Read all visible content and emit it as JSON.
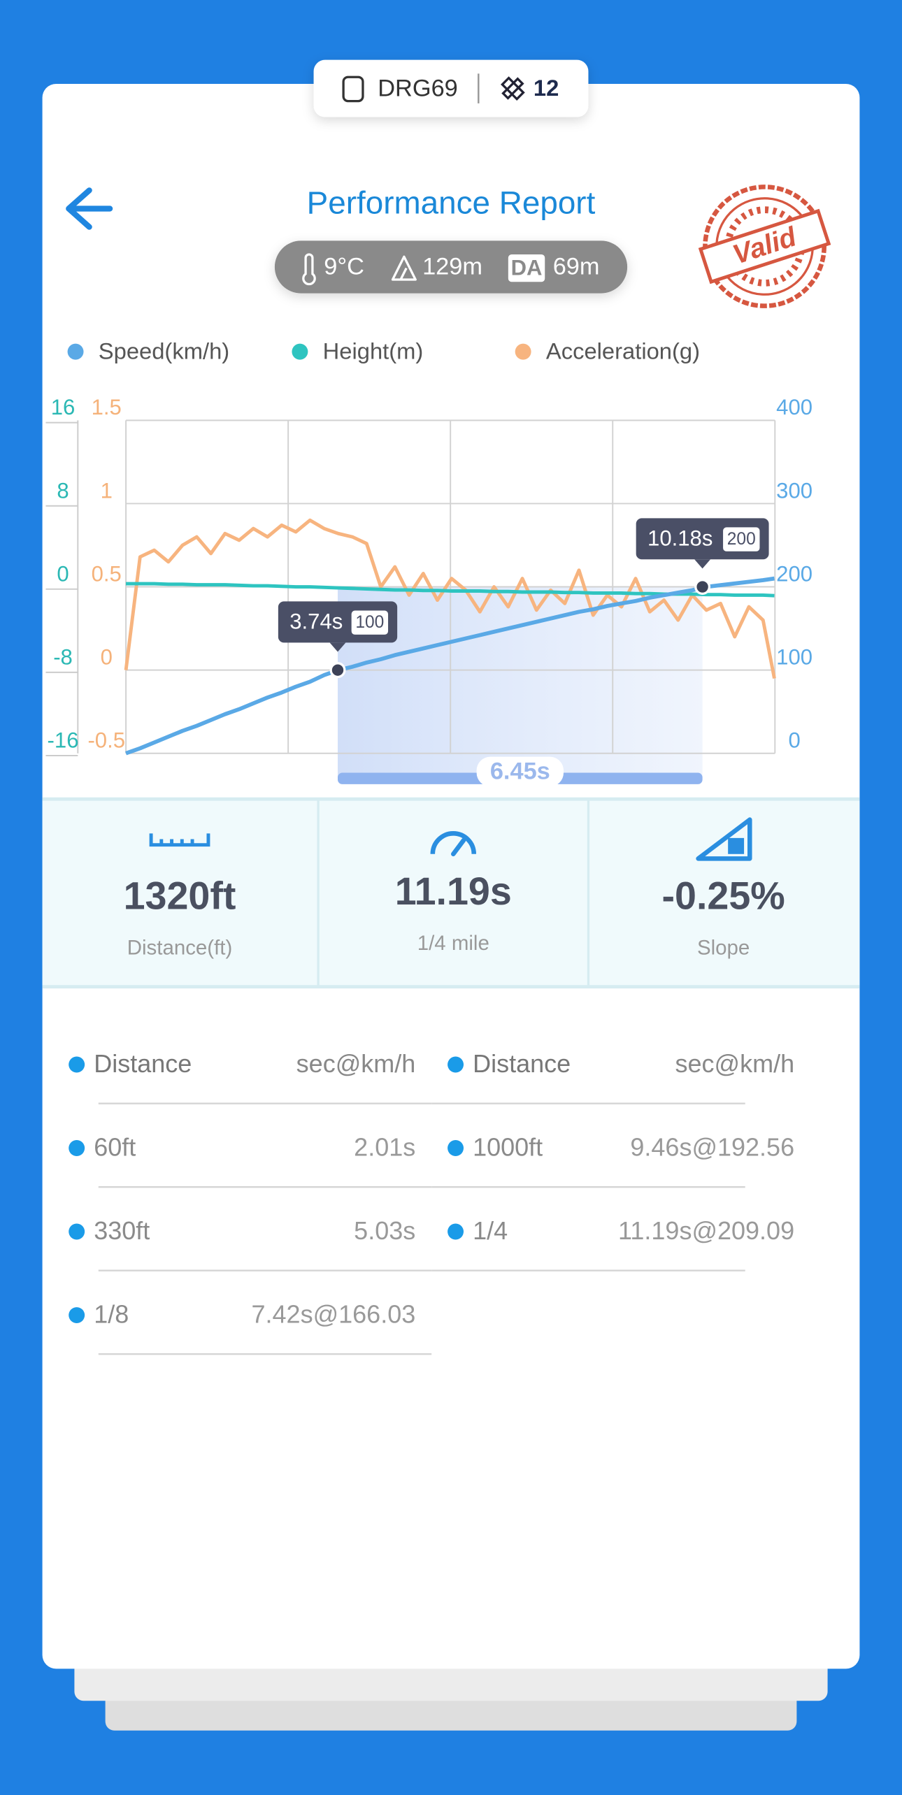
{
  "device": {
    "name": "DRG69",
    "satellites": "12"
  },
  "header": {
    "title": "Performance Report",
    "temperature": "9°C",
    "altitude": "129m",
    "da_label": "DA",
    "density_altitude": "69m",
    "stamp": "Valid"
  },
  "chart_data": {
    "type": "line",
    "x": [
      0,
      0.25,
      0.5,
      0.75,
      1,
      1.25,
      1.5,
      1.75,
      2,
      2.25,
      2.5,
      2.75,
      3,
      3.25,
      3.5,
      3.75,
      4,
      4.25,
      4.5,
      4.75,
      5,
      5.25,
      5.5,
      5.75,
      6,
      6.25,
      6.5,
      6.75,
      7,
      7.25,
      7.5,
      7.75,
      8,
      8.25,
      8.5,
      8.75,
      9,
      9.25,
      9.5,
      9.75,
      10,
      10.25,
      10.5,
      10.75,
      11,
      11.25,
      11.45
    ],
    "xlim": [
      0,
      11.46
    ],
    "series": [
      {
        "name": "Speed(km/h)",
        "color": "#5aa9e6",
        "axis": "y2",
        "values": [
          0,
          6,
          13,
          20,
          27,
          33,
          40,
          47,
          53,
          60,
          67,
          73,
          80,
          86,
          94,
          100,
          104,
          109,
          113,
          118,
          122,
          126,
          130,
          134,
          138,
          142,
          146,
          150,
          154,
          158,
          162,
          166,
          170,
          173,
          177,
          180,
          183,
          187,
          190,
          193,
          196,
          200,
          202,
          204,
          206,
          208,
          210
        ]
      },
      {
        "name": "Height(m)",
        "color": "#2ec4c0",
        "axis": "y",
        "values": [
          0.3,
          0.3,
          0.3,
          0.25,
          0.25,
          0.2,
          0.2,
          0.2,
          0.15,
          0.1,
          0.1,
          0.05,
          0,
          0,
          -0.05,
          -0.1,
          -0.15,
          -0.2,
          -0.25,
          -0.3,
          -0.3,
          -0.35,
          -0.35,
          -0.4,
          -0.4,
          -0.4,
          -0.45,
          -0.45,
          -0.5,
          -0.5,
          -0.5,
          -0.55,
          -0.55,
          -0.6,
          -0.6,
          -0.6,
          -0.65,
          -0.65,
          -0.7,
          -0.7,
          -0.7,
          -0.75,
          -0.75,
          -0.8,
          -0.8,
          -0.8,
          -0.85
        ]
      },
      {
        "name": "Acceleration(g)",
        "color": "#f7b47f",
        "axis": "y3",
        "values": [
          0,
          0.68,
          0.72,
          0.65,
          0.75,
          0.8,
          0.7,
          0.82,
          0.78,
          0.85,
          0.8,
          0.87,
          0.83,
          0.9,
          0.85,
          0.82,
          0.8,
          0.76,
          0.5,
          0.62,
          0.45,
          0.58,
          0.42,
          0.55,
          0.48,
          0.35,
          0.5,
          0.38,
          0.55,
          0.36,
          0.48,
          0.4,
          0.6,
          0.33,
          0.45,
          0.38,
          0.55,
          0.35,
          0.42,
          0.3,
          0.45,
          0.36,
          0.4,
          0.2,
          0.38,
          0.3,
          -0.05
        ]
      }
    ],
    "ylim": [
      -16,
      16
    ],
    "yticks": [
      -16,
      -8,
      0,
      8,
      16
    ],
    "y2lim": [
      0,
      400
    ],
    "y2ticks": [
      0,
      100,
      200,
      300,
      400
    ],
    "y3lim": [
      -0.5,
      1.5
    ],
    "y3ticks": [
      -0.5,
      0,
      0.5,
      1,
      1.5
    ],
    "grid": true,
    "markers": [
      {
        "x": 3.74,
        "label": "3.74s",
        "speed": 100
      },
      {
        "x": 10.18,
        "label": "10.18s",
        "speed": 200
      }
    ],
    "span_label": "6.45s"
  },
  "stats": [
    {
      "value": "1320ft",
      "label": "Distance(ft)"
    },
    {
      "value": "11.19s",
      "label": "1/4 mile"
    },
    {
      "value": "-0.25%",
      "label": "Slope"
    }
  ],
  "splits": [
    {
      "header": [
        "Distance",
        "sec@km/h"
      ],
      "rows": [
        [
          "60ft",
          "2.01s"
        ],
        [
          "330ft",
          "5.03s"
        ],
        [
          "1/8",
          "7.42s@166.03"
        ]
      ]
    },
    {
      "header": [
        "Distance",
        "sec@km/h"
      ],
      "rows": [
        [
          "1000ft",
          "9.46s@192.56"
        ],
        [
          "1/4",
          "11.19s@209.09"
        ]
      ]
    }
  ]
}
